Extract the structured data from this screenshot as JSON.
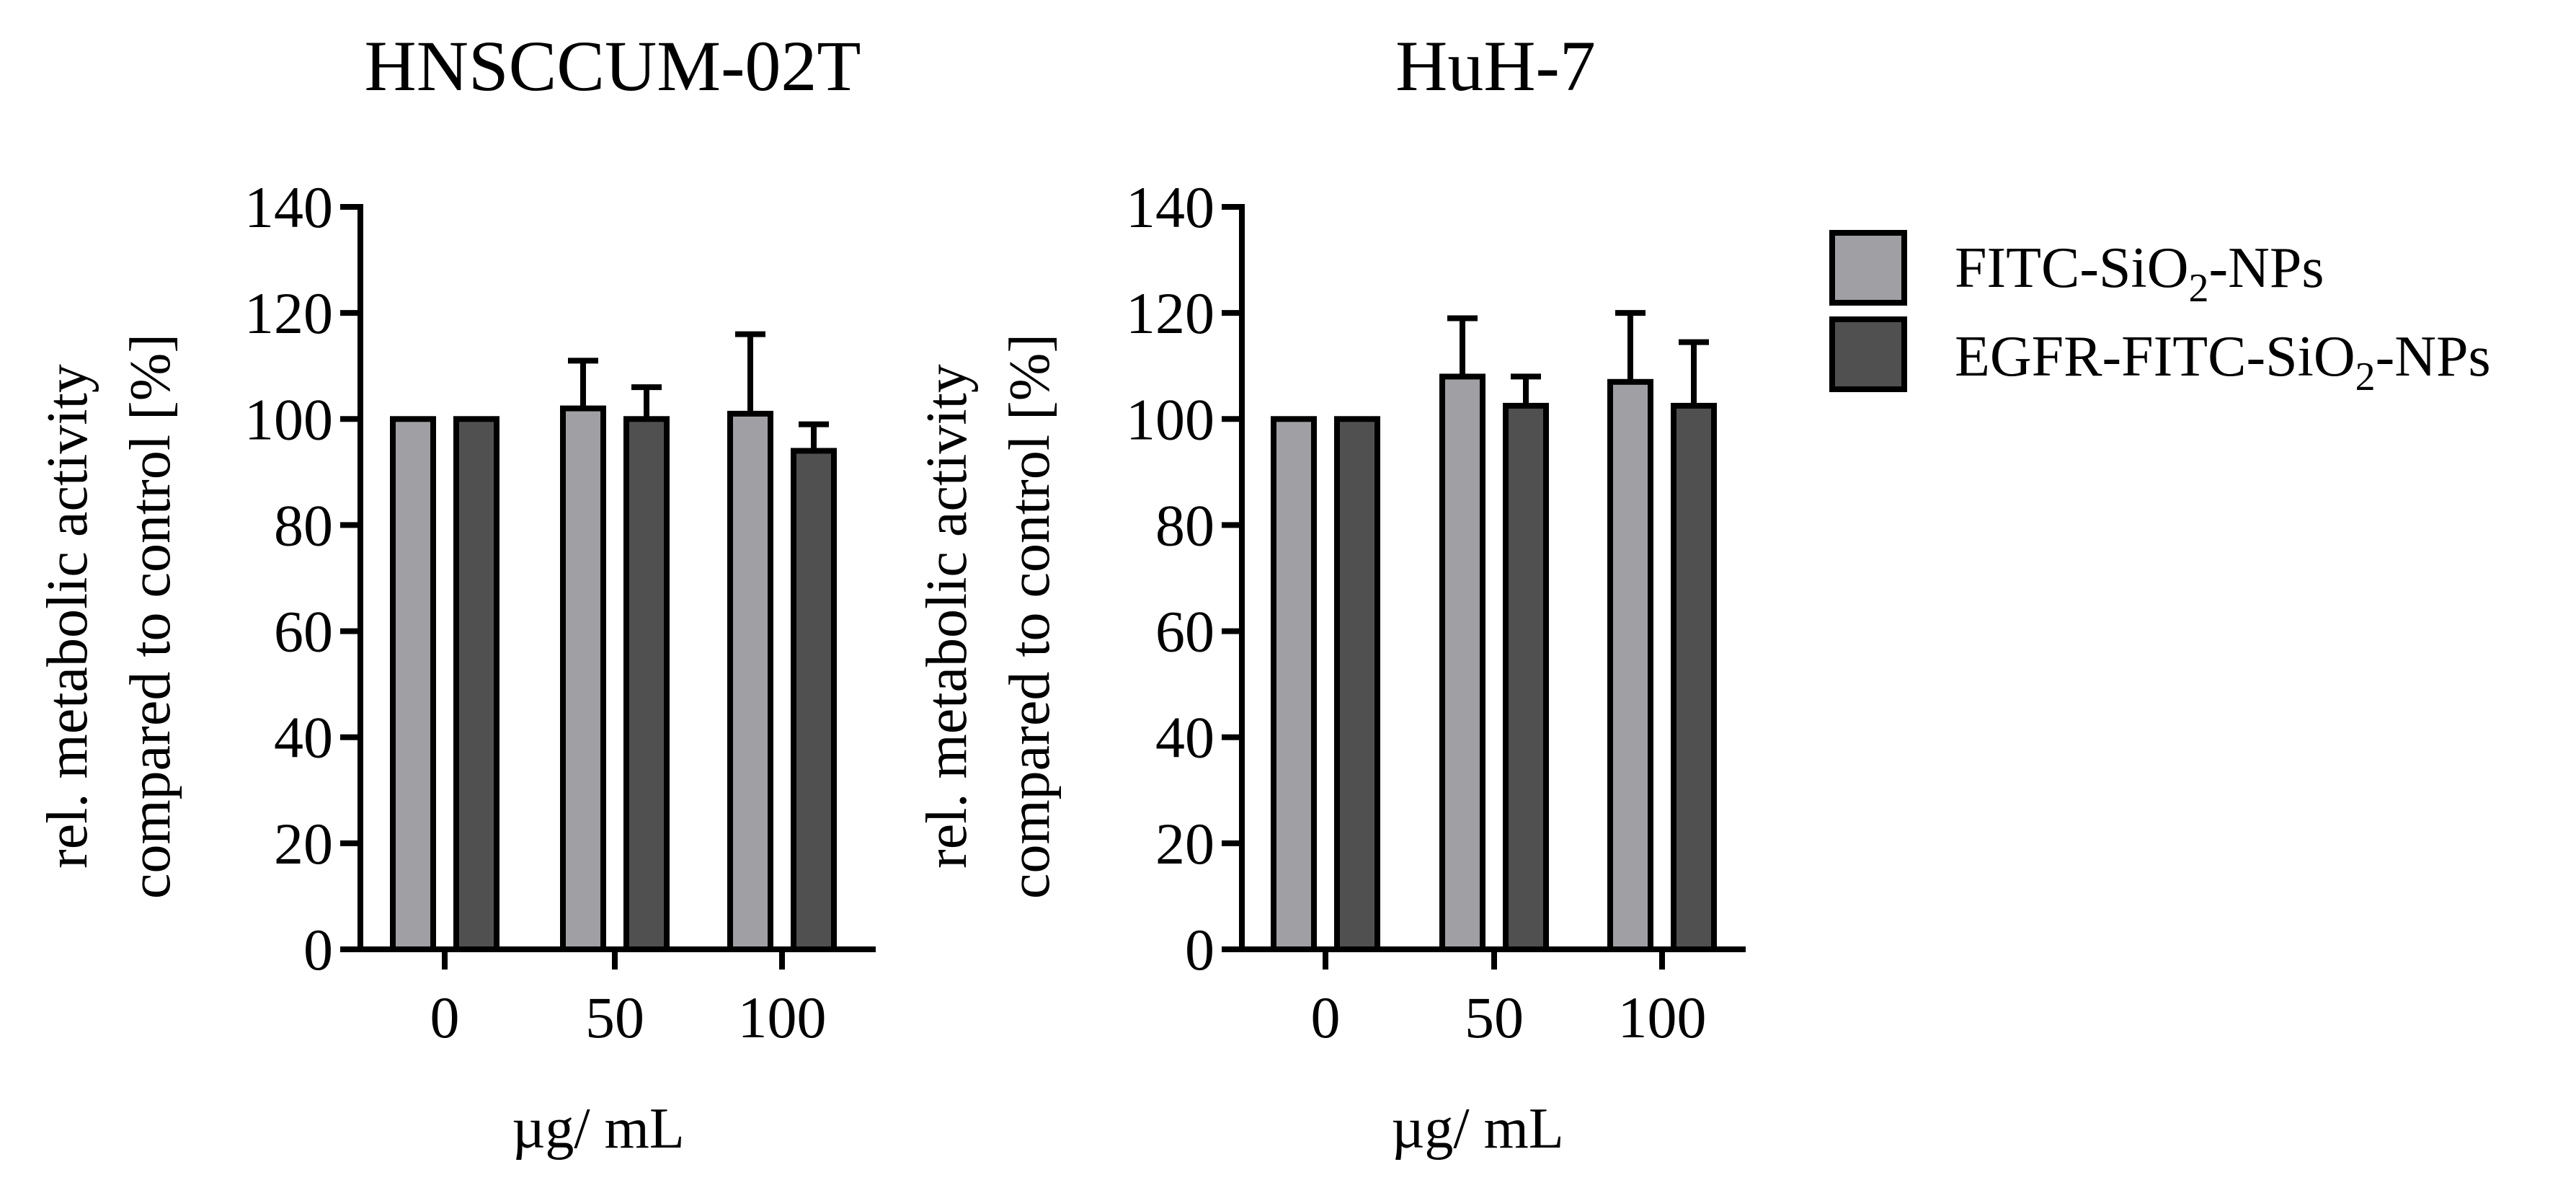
{
  "legend": {
    "entries": [
      {
        "prefix": "FITC-SiO",
        "sub": "2",
        "suffix": "-NPs",
        "color": "#a0a0a4"
      },
      {
        "prefix": "EGFR-FITC-SiO",
        "sub": "2",
        "suffix": "-NPs",
        "color": "#505050"
      }
    ]
  },
  "chart_data": [
    {
      "type": "bar",
      "title": "HNSCCUM-02T",
      "xlabel": "µg/ mL",
      "ylabel": [
        "rel. metabolic activity",
        "compared to control [%]"
      ],
      "categories": [
        "0",
        "50",
        "100"
      ],
      "ylim": [
        0,
        140
      ],
      "yticks": [
        "0",
        "20",
        "40",
        "60",
        "80",
        "100",
        "120",
        "140"
      ],
      "grid": false,
      "series": [
        {
          "name": "FITC-SiO2-NPs",
          "color": "#a0a0a4",
          "values": [
            100,
            102,
            101
          ],
          "errors": [
            0,
            9,
            15
          ]
        },
        {
          "name": "EGFR-FITC-SiO2-NPs",
          "color": "#505050",
          "values": [
            100,
            100,
            94
          ],
          "errors": [
            0,
            6,
            5
          ]
        }
      ]
    },
    {
      "type": "bar",
      "title": "HuH-7",
      "xlabel": "µg/ mL",
      "ylabel": [
        "rel. metabolic activity",
        "compared to control [%]"
      ],
      "categories": [
        "0",
        "50",
        "100"
      ],
      "ylim": [
        0,
        140
      ],
      "yticks": [
        "0",
        "20",
        "40",
        "60",
        "80",
        "100",
        "120",
        "140"
      ],
      "grid": false,
      "series": [
        {
          "name": "FITC-SiO2-NPs",
          "color": "#a0a0a4",
          "values": [
            100,
            108,
            107
          ],
          "errors": [
            0,
            11,
            13
          ]
        },
        {
          "name": "EGFR-FITC-SiO2-NPs",
          "color": "#505050",
          "values": [
            100,
            102.5,
            102.5
          ],
          "errors": [
            0,
            5.5,
            12
          ]
        }
      ]
    }
  ]
}
